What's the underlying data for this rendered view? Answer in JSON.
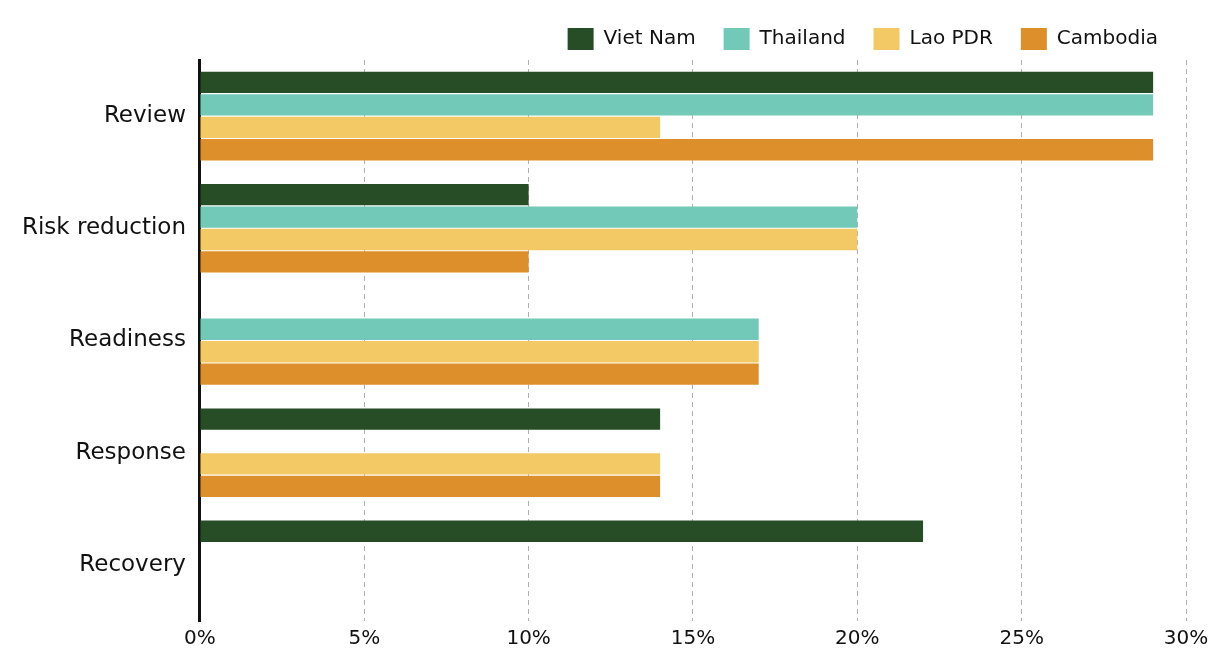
{
  "chart_data": {
    "type": "bar",
    "orientation": "horizontal",
    "categories": [
      "Review",
      "Risk reduction",
      "Readiness",
      "Response",
      "Recovery"
    ],
    "series": [
      {
        "name": "Viet Nam",
        "color": "#264d26",
        "values": [
          29,
          10,
          null,
          14,
          22
        ]
      },
      {
        "name": "Thailand",
        "color": "#72c9b8",
        "values": [
          29,
          20,
          17,
          null,
          null
        ]
      },
      {
        "name": "Lao PDR",
        "color": "#f2c964",
        "values": [
          14,
          20,
          17,
          14,
          null
        ]
      },
      {
        "name": "Cambodia",
        "color": "#dd8f2b",
        "values": [
          29,
          10,
          17,
          14,
          null
        ]
      }
    ],
    "xlim": [
      0,
      30
    ],
    "xticks": [
      {
        "value": 0,
        "label": "0%"
      },
      {
        "value": 5,
        "label": "5%"
      },
      {
        "value": 10,
        "label": "10%"
      },
      {
        "value": 15,
        "label": "15%"
      },
      {
        "value": 20,
        "label": "20%"
      },
      {
        "value": 25,
        "label": "25%"
      },
      {
        "value": 30,
        "label": "30%"
      }
    ],
    "grid": "x",
    "legend": "top right"
  }
}
